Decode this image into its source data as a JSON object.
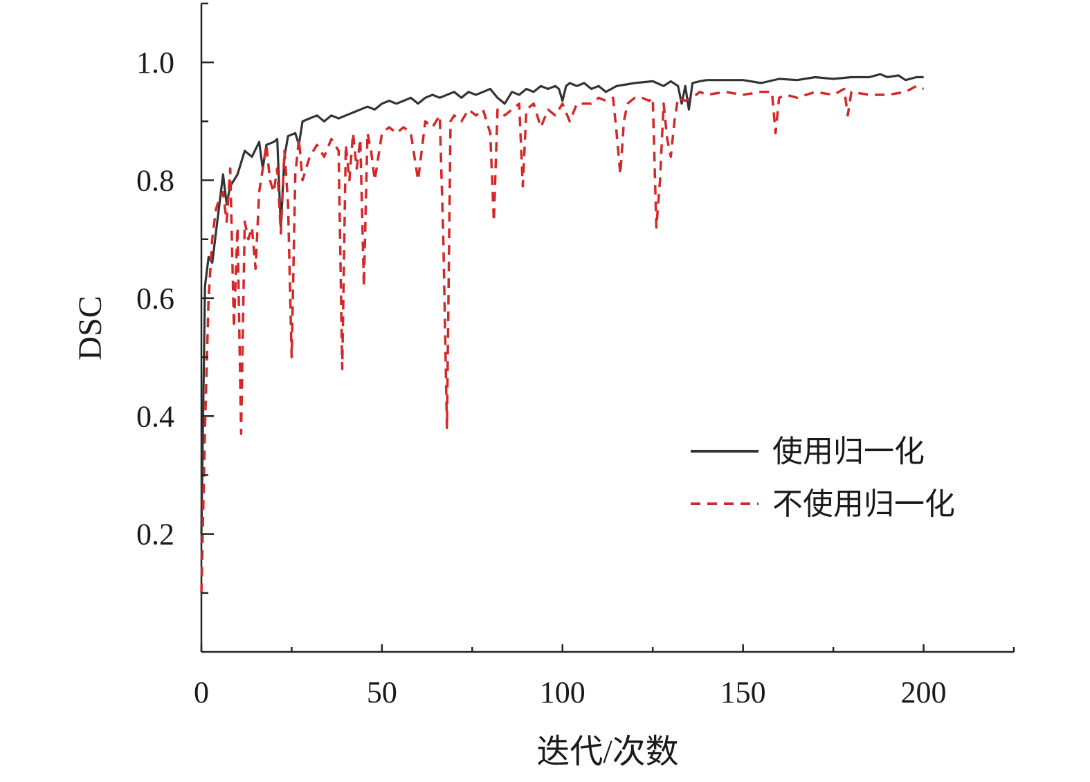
{
  "chart_data": {
    "type": "line",
    "xlabel": "迭代/次数",
    "ylabel": "DSC",
    "xlim": [
      0,
      225
    ],
    "ylim": [
      0,
      1.1
    ],
    "x_ticks": [
      0,
      50,
      100,
      150,
      200
    ],
    "x_tick_labels": [
      "0",
      "50",
      "100",
      "150",
      "200"
    ],
    "y_ticks": [
      0.2,
      0.4,
      0.6,
      0.8,
      1.0
    ],
    "y_tick_labels": [
      "0.2",
      "0.4",
      "0.6",
      "0.8",
      "1.0"
    ],
    "legend_position": "center-right",
    "grid": false,
    "series": [
      {
        "name": "使用归一化",
        "color": "#333333",
        "style": "solid",
        "x": [
          0,
          1,
          2,
          3,
          4,
          5,
          6,
          7,
          8,
          9,
          10,
          12,
          14,
          16,
          17,
          18,
          20,
          21,
          22,
          23,
          24,
          26,
          27,
          28,
          30,
          32,
          34,
          36,
          38,
          40,
          42,
          44,
          46,
          48,
          50,
          52,
          54,
          56,
          58,
          60,
          62,
          64,
          66,
          68,
          70,
          72,
          74,
          76,
          78,
          80,
          82,
          84,
          86,
          88,
          90,
          92,
          94,
          96,
          98,
          99,
          100,
          101,
          102,
          104,
          106,
          108,
          110,
          112,
          115,
          120,
          125,
          128,
          130,
          132,
          133,
          134,
          135,
          136,
          138,
          140,
          145,
          150,
          155,
          160,
          165,
          170,
          175,
          180,
          185,
          188,
          190,
          193,
          195,
          198,
          200
        ],
        "values": [
          0.2,
          0.62,
          0.67,
          0.66,
          0.71,
          0.76,
          0.81,
          0.76,
          0.79,
          0.8,
          0.81,
          0.85,
          0.84,
          0.865,
          0.82,
          0.86,
          0.865,
          0.87,
          0.72,
          0.84,
          0.875,
          0.88,
          0.86,
          0.9,
          0.905,
          0.91,
          0.9,
          0.91,
          0.905,
          0.91,
          0.915,
          0.92,
          0.925,
          0.92,
          0.93,
          0.935,
          0.93,
          0.935,
          0.94,
          0.93,
          0.94,
          0.945,
          0.94,
          0.945,
          0.95,
          0.94,
          0.95,
          0.945,
          0.95,
          0.955,
          0.94,
          0.93,
          0.95,
          0.945,
          0.955,
          0.95,
          0.96,
          0.955,
          0.96,
          0.955,
          0.935,
          0.96,
          0.965,
          0.96,
          0.965,
          0.955,
          0.96,
          0.95,
          0.96,
          0.965,
          0.968,
          0.96,
          0.968,
          0.96,
          0.93,
          0.96,
          0.92,
          0.965,
          0.968,
          0.97,
          0.97,
          0.97,
          0.965,
          0.972,
          0.97,
          0.975,
          0.972,
          0.975,
          0.975,
          0.98,
          0.975,
          0.978,
          0.97,
          0.975,
          0.975
        ]
      },
      {
        "name": "不使用归一化",
        "color": "#d62728",
        "style": "dashed",
        "x": [
          0,
          1,
          2,
          3,
          4,
          5,
          6,
          7,
          8,
          9,
          10,
          11,
          12,
          13,
          14,
          15,
          16,
          17,
          18,
          19,
          20,
          21,
          22,
          23,
          24,
          25,
          26,
          27,
          28,
          30,
          32,
          34,
          36,
          38,
          39,
          40,
          41,
          42,
          43,
          44,
          45,
          46,
          47,
          48,
          50,
          52,
          54,
          56,
          58,
          60,
          62,
          64,
          66,
          67,
          68,
          69,
          70,
          72,
          74,
          76,
          78,
          80,
          81,
          82,
          84,
          86,
          88,
          89,
          90,
          92,
          94,
          96,
          98,
          100,
          102,
          104,
          106,
          108,
          110,
          112,
          114,
          115,
          116,
          117,
          118,
          120,
          122,
          124,
          125,
          126,
          127,
          128,
          129,
          130,
          131,
          132,
          134,
          136,
          138,
          140,
          145,
          150,
          155,
          158,
          159,
          160,
          162,
          165,
          170,
          175,
          178,
          179,
          180,
          185,
          190,
          195,
          198,
          200
        ],
        "values": [
          0.1,
          0.38,
          0.6,
          0.7,
          0.75,
          0.77,
          0.78,
          0.73,
          0.82,
          0.55,
          0.72,
          0.37,
          0.73,
          0.7,
          0.72,
          0.65,
          0.78,
          0.82,
          0.86,
          0.8,
          0.78,
          0.82,
          0.71,
          0.85,
          0.76,
          0.5,
          0.81,
          0.87,
          0.8,
          0.84,
          0.86,
          0.84,
          0.87,
          0.85,
          0.48,
          0.86,
          0.8,
          0.88,
          0.82,
          0.87,
          0.62,
          0.88,
          0.85,
          0.8,
          0.88,
          0.89,
          0.88,
          0.89,
          0.88,
          0.8,
          0.9,
          0.89,
          0.91,
          0.7,
          0.38,
          0.9,
          0.91,
          0.9,
          0.92,
          0.91,
          0.92,
          0.88,
          0.73,
          0.92,
          0.91,
          0.92,
          0.93,
          0.79,
          0.92,
          0.93,
          0.89,
          0.92,
          0.91,
          0.93,
          0.9,
          0.93,
          0.93,
          0.93,
          0.94,
          0.935,
          0.94,
          0.88,
          0.81,
          0.9,
          0.93,
          0.94,
          0.94,
          0.935,
          0.94,
          0.72,
          0.8,
          0.93,
          0.87,
          0.84,
          0.9,
          0.94,
          0.935,
          0.94,
          0.95,
          0.945,
          0.95,
          0.945,
          0.95,
          0.95,
          0.88,
          0.94,
          0.945,
          0.94,
          0.95,
          0.945,
          0.955,
          0.91,
          0.95,
          0.945,
          0.945,
          0.95,
          0.96,
          0.955
        ]
      }
    ]
  }
}
